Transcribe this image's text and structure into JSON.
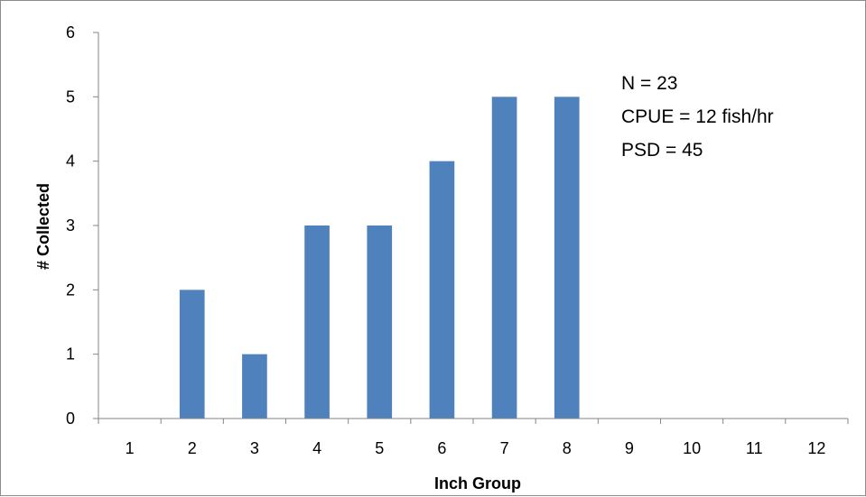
{
  "chart_data": {
    "type": "bar",
    "categories": [
      "1",
      "2",
      "3",
      "4",
      "5",
      "6",
      "7",
      "8",
      "9",
      "10",
      "11",
      "12"
    ],
    "values": [
      0,
      2,
      1,
      3,
      3,
      4,
      5,
      5,
      0,
      0,
      0,
      0
    ],
    "xlabel": "Inch Group",
    "ylabel": "# Collected",
    "ylim": [
      0,
      6
    ],
    "yticks": [
      0,
      1,
      2,
      3,
      4,
      5,
      6
    ],
    "grid": false,
    "legend": "none",
    "bar_color": "#4f81bd",
    "annotations": [
      "N = 23",
      "CPUE = 12 fish/hr",
      "PSD = 45"
    ]
  }
}
